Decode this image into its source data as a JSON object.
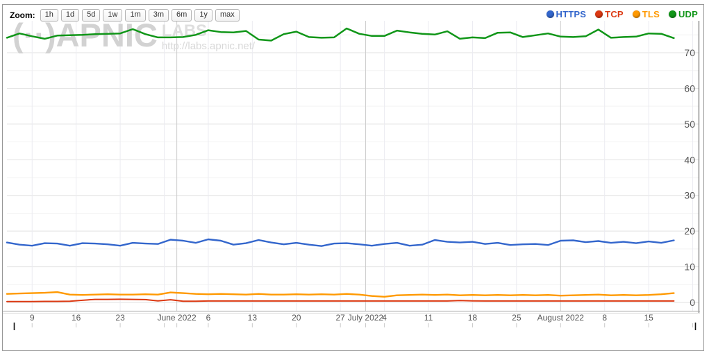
{
  "toolbar": {
    "zoom_label": "Zoom:",
    "buttons": [
      "1h",
      "1d",
      "5d",
      "1w",
      "1m",
      "3m",
      "6m",
      "1y",
      "max"
    ]
  },
  "legend": {
    "position": "top-right",
    "items": [
      {
        "label": "HTTPS",
        "color": "#3366cc"
      },
      {
        "label": "TCP",
        "color": "#dc3912"
      },
      {
        "label": "TLS",
        "color": "#ff9900"
      },
      {
        "label": "UDP",
        "color": "#109618"
      }
    ]
  },
  "watermark": {
    "logo": "(··)APNIC",
    "labs": "LABS",
    "url": "http://labs.apnic.net/"
  },
  "chart_data": {
    "type": "line",
    "title": "",
    "xlabel": "",
    "ylabel": "",
    "grid": true,
    "legend_position": "top-right",
    "x_unit": "days since 2022-05-05",
    "x_range_dates": [
      "2022-05-05",
      "2022-08-19"
    ],
    "ylim": [
      0,
      79
    ],
    "y_ticks": [
      0,
      10,
      20,
      30,
      40,
      50,
      60,
      70
    ],
    "y_minor_step": 5,
    "x": [
      0,
      2,
      4,
      6,
      8,
      10,
      12,
      14,
      16,
      18,
      20,
      22,
      24,
      26,
      28,
      30,
      32,
      34,
      36,
      38,
      40,
      42,
      44,
      46,
      48,
      50,
      52,
      54,
      56,
      58,
      60,
      62,
      64,
      66,
      68,
      70,
      72,
      74,
      76,
      78,
      80,
      82,
      84,
      86,
      88,
      90,
      92,
      94,
      96,
      98,
      100,
      102,
      104,
      106
    ],
    "x_ticks": [
      {
        "t": 4,
        "label": "9",
        "month": false
      },
      {
        "t": 11,
        "label": "16",
        "month": false
      },
      {
        "t": 18,
        "label": "23",
        "month": false
      },
      {
        "t": 25,
        "label": "",
        "month": false
      },
      {
        "t": 27,
        "label": "June 2022",
        "month": true
      },
      {
        "t": 32,
        "label": "6",
        "month": false
      },
      {
        "t": 39,
        "label": "13",
        "month": false
      },
      {
        "t": 46,
        "label": "20",
        "month": false
      },
      {
        "t": 53,
        "label": "27",
        "month": false
      },
      {
        "t": 57,
        "label": "July 2022",
        "month": true
      },
      {
        "t": 60,
        "label": "4",
        "month": false
      },
      {
        "t": 67,
        "label": "11",
        "month": false
      },
      {
        "t": 74,
        "label": "18",
        "month": false
      },
      {
        "t": 81,
        "label": "25",
        "month": false
      },
      {
        "t": 88,
        "label": "August 2022",
        "month": true
      },
      {
        "t": 95,
        "label": "8",
        "month": false
      },
      {
        "t": 102,
        "label": "15",
        "month": false
      },
      {
        "t": 109,
        "label": "",
        "month": false
      }
    ],
    "series": [
      {
        "name": "HTTPS",
        "color": "#3366cc",
        "width": 2.4,
        "values": [
          16.8,
          16.2,
          15.9,
          16.6,
          16.5,
          15.9,
          16.6,
          16.5,
          16.3,
          15.9,
          16.7,
          16.5,
          16.4,
          17.6,
          17.3,
          16.7,
          17.7,
          17.3,
          16.2,
          16.6,
          17.5,
          16.8,
          16.3,
          16.7,
          16.2,
          15.8,
          16.5,
          16.6,
          16.3,
          15.9,
          16.4,
          16.7,
          15.9,
          16.2,
          17.5,
          17.0,
          16.8,
          17.0,
          16.4,
          16.7,
          16.1,
          16.3,
          16.4,
          16.1,
          17.3,
          17.4,
          16.9,
          17.2,
          16.7,
          17.0,
          16.6,
          17.1,
          16.7,
          17.4
        ]
      },
      {
        "name": "TCP",
        "color": "#dc3912",
        "width": 2.0,
        "values": [
          0.25,
          0.25,
          0.25,
          0.3,
          0.3,
          0.35,
          0.6,
          0.85,
          0.85,
          0.9,
          0.85,
          0.8,
          0.45,
          0.75,
          0.35,
          0.35,
          0.4,
          0.4,
          0.4,
          0.4,
          0.4,
          0.4,
          0.4,
          0.4,
          0.4,
          0.4,
          0.4,
          0.4,
          0.4,
          0.4,
          0.4,
          0.4,
          0.4,
          0.4,
          0.4,
          0.4,
          0.55,
          0.45,
          0.4,
          0.4,
          0.4,
          0.4,
          0.4,
          0.4,
          0.4,
          0.4,
          0.4,
          0.4,
          0.4,
          0.4,
          0.4,
          0.4,
          0.4,
          0.4
        ]
      },
      {
        "name": "TLS",
        "color": "#ff9900",
        "width": 2.4,
        "values": [
          2.4,
          2.5,
          2.6,
          2.7,
          2.9,
          2.2,
          2.1,
          2.2,
          2.3,
          2.2,
          2.2,
          2.3,
          2.2,
          2.8,
          2.6,
          2.4,
          2.3,
          2.4,
          2.3,
          2.2,
          2.4,
          2.2,
          2.2,
          2.3,
          2.2,
          2.3,
          2.2,
          2.4,
          2.2,
          1.8,
          1.6,
          2.0,
          2.1,
          2.2,
          2.1,
          2.2,
          2.0,
          2.1,
          2.0,
          2.1,
          2.0,
          2.1,
          2.0,
          2.1,
          1.9,
          2.0,
          2.1,
          2.2,
          2.0,
          2.1,
          2.0,
          2.1,
          2.3,
          2.6
        ]
      },
      {
        "name": "UDP",
        "color": "#109618",
        "width": 2.5,
        "values": [
          74.2,
          75.4,
          74.6,
          73.9,
          74.8,
          74.9,
          75.0,
          75.2,
          75.3,
          75.4,
          76.6,
          75.2,
          74.3,
          74.3,
          74.4,
          75.0,
          76.3,
          75.8,
          75.7,
          76.1,
          73.7,
          73.4,
          75.2,
          75.9,
          74.4,
          74.2,
          74.3,
          76.8,
          75.3,
          74.7,
          74.7,
          76.2,
          75.7,
          75.3,
          75.1,
          76.0,
          73.9,
          74.3,
          74.1,
          75.6,
          75.7,
          74.4,
          74.9,
          75.4,
          74.5,
          74.4,
          74.6,
          76.5,
          74.2,
          74.4,
          74.5,
          75.4,
          75.3,
          74.1
        ]
      }
    ]
  }
}
